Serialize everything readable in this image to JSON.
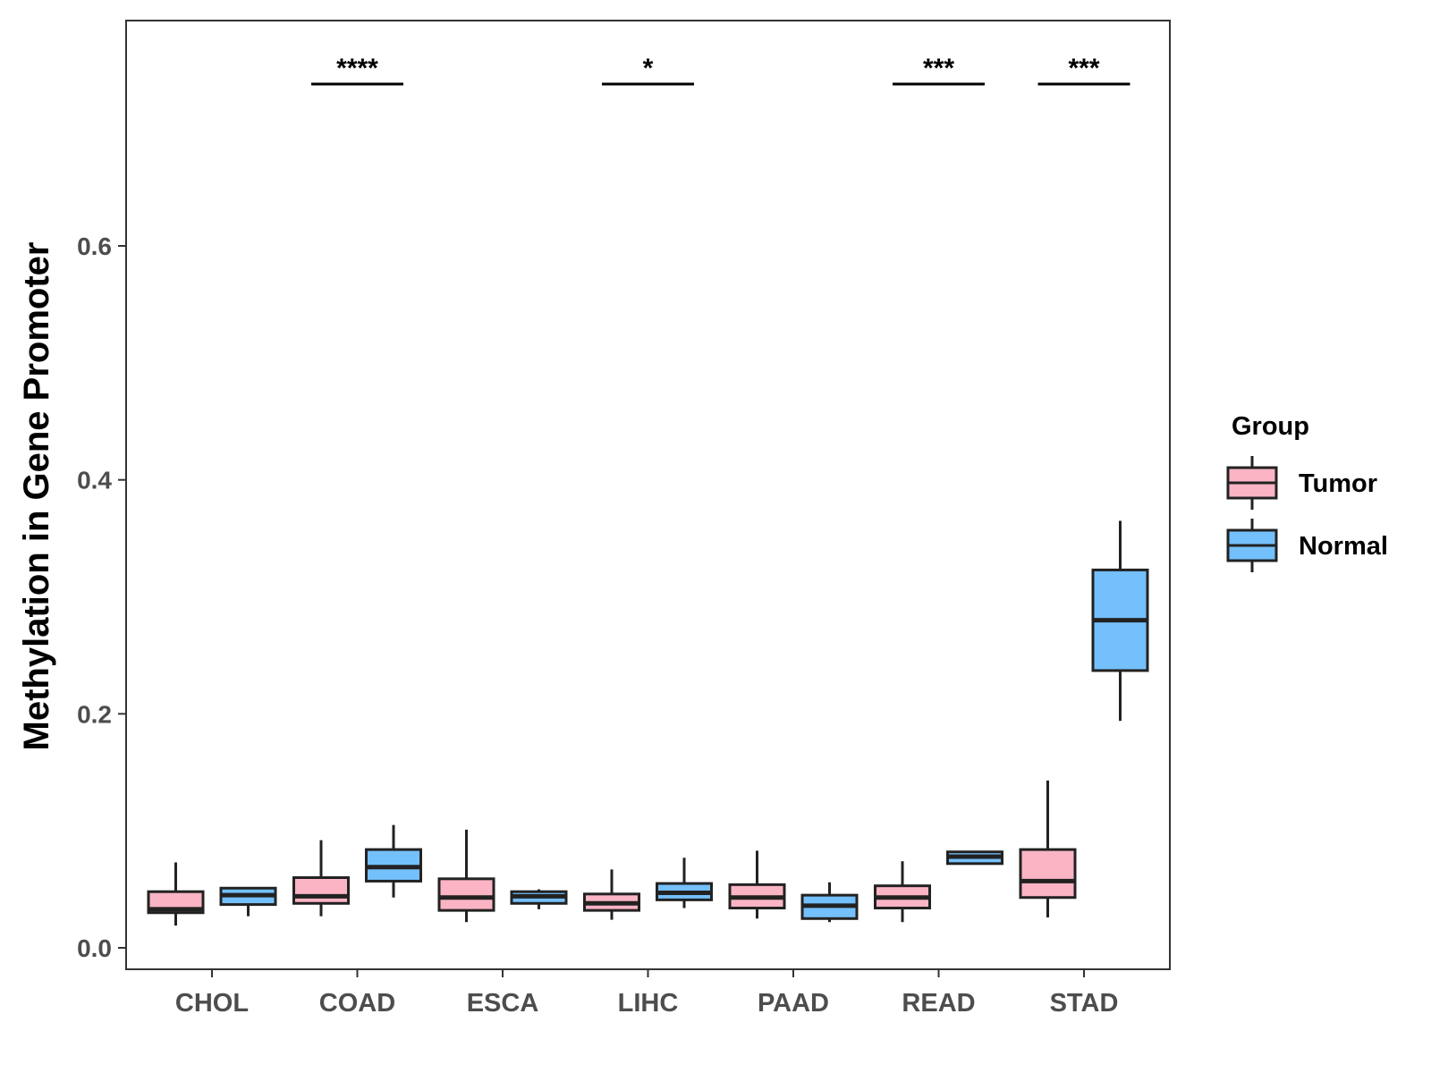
{
  "chart_data": {
    "type": "boxplot",
    "title": "",
    "xlabel": "",
    "ylabel": "Methylation in Gene Promoter",
    "ylim": [
      -0.018,
      0.79
    ],
    "yticks": [
      0.0,
      0.2,
      0.4,
      0.6
    ],
    "ytick_labels": [
      "0.0",
      "0.2",
      "0.4",
      "0.6"
    ],
    "grid": false,
    "legend": {
      "title": "Group",
      "position": "right",
      "entries": [
        {
          "name": "Tumor",
          "color": "#fbb4c4"
        },
        {
          "name": "Normal",
          "color": "#74c0fc"
        }
      ]
    },
    "categories": [
      "CHOL",
      "COAD",
      "ESCA",
      "LIHC",
      "PAAD",
      "READ",
      "STAD"
    ],
    "series": [
      {
        "name": "Tumor",
        "color": "#fbb4c4",
        "boxes": [
          {
            "whisker_low": 0.019,
            "q1": 0.03,
            "median": 0.033,
            "q3": 0.048,
            "whisker_high": 0.073
          },
          {
            "whisker_low": 0.027,
            "q1": 0.038,
            "median": 0.044,
            "q3": 0.06,
            "whisker_high": 0.092
          },
          {
            "whisker_low": 0.022,
            "q1": 0.032,
            "median": 0.043,
            "q3": 0.059,
            "whisker_high": 0.101
          },
          {
            "whisker_low": 0.024,
            "q1": 0.032,
            "median": 0.038,
            "q3": 0.046,
            "whisker_high": 0.067
          },
          {
            "whisker_low": 0.025,
            "q1": 0.034,
            "median": 0.043,
            "q3": 0.054,
            "whisker_high": 0.083
          },
          {
            "whisker_low": 0.022,
            "q1": 0.034,
            "median": 0.043,
            "q3": 0.053,
            "whisker_high": 0.074
          },
          {
            "whisker_low": 0.026,
            "q1": 0.043,
            "median": 0.057,
            "q3": 0.084,
            "whisker_high": 0.143
          }
        ]
      },
      {
        "name": "Normal",
        "color": "#74c0fc",
        "boxes": [
          {
            "whisker_low": 0.027,
            "q1": 0.037,
            "median": 0.045,
            "q3": 0.051,
            "whisker_high": 0.052
          },
          {
            "whisker_low": 0.043,
            "q1": 0.057,
            "median": 0.069,
            "q3": 0.084,
            "whisker_high": 0.105
          },
          {
            "whisker_low": 0.033,
            "q1": 0.038,
            "median": 0.044,
            "q3": 0.048,
            "whisker_high": 0.05
          },
          {
            "whisker_low": 0.034,
            "q1": 0.041,
            "median": 0.047,
            "q3": 0.055,
            "whisker_high": 0.077
          },
          {
            "whisker_low": 0.022,
            "q1": 0.025,
            "median": 0.036,
            "q3": 0.045,
            "whisker_high": 0.056
          },
          {
            "whisker_low": 0.072,
            "q1": 0.072,
            "median": 0.078,
            "q3": 0.082,
            "whisker_high": 0.082
          },
          {
            "whisker_low": 0.194,
            "q1": 0.237,
            "median": 0.28,
            "q3": 0.323,
            "whisker_high": 0.365
          }
        ]
      }
    ],
    "annotations": [
      {
        "category": "COAD",
        "label": "****",
        "y": 0.74
      },
      {
        "category": "LIHC",
        "label": "*",
        "y": 0.74
      },
      {
        "category": "READ",
        "label": "***",
        "y": 0.74
      },
      {
        "category": "STAD",
        "label": "***",
        "y": 0.74
      }
    ]
  }
}
